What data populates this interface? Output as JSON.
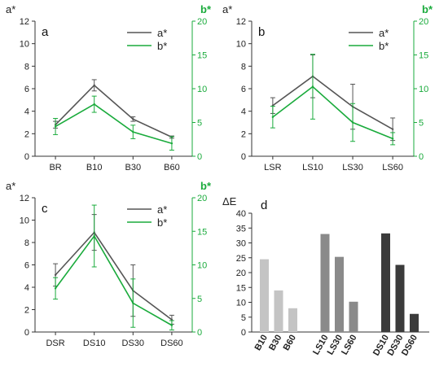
{
  "colors": {
    "a_series": "#555555",
    "b_series": "#1aab3c",
    "right_axis": "#1aab3c",
    "bars": [
      "#c4c4c4",
      "#c4c4c4",
      "#c4c4c4",
      "#8a8a8a",
      "#8a8a8a",
      "#8a8a8a",
      "#3b3b3b",
      "#3b3b3b",
      "#3b3b3b"
    ]
  },
  "chart_data": [
    {
      "panel": "a",
      "type": "line",
      "left_axis_label": "a*",
      "right_axis_label": "b*",
      "ylim_left": [
        0,
        12
      ],
      "yticks_left": [
        0,
        2,
        4,
        6,
        8,
        10,
        12
      ],
      "ylim_right": [
        0,
        20
      ],
      "yticks_right": [
        0,
        5,
        10,
        15,
        20
      ],
      "categories": [
        "BR",
        "B10",
        "B30",
        "B60"
      ],
      "series": [
        {
          "name": "a*",
          "axis": "left",
          "values": [
            2.8,
            6.3,
            3.3,
            1.7
          ],
          "errors": [
            0.3,
            0.5,
            0.2,
            0.1
          ]
        },
        {
          "name": "b*",
          "axis": "right",
          "values": [
            4.4,
            7.7,
            3.6,
            1.9
          ],
          "errors": [
            1.2,
            1.2,
            1.0,
            1.0
          ]
        }
      ],
      "legend_position": "top-right",
      "grid": false
    },
    {
      "panel": "b",
      "type": "line",
      "left_axis_label": "a*",
      "right_axis_label": "b*",
      "ylim_left": [
        0,
        12
      ],
      "yticks_left": [
        0,
        2,
        4,
        6,
        8,
        10,
        12
      ],
      "ylim_right": [
        0,
        20
      ],
      "yticks_right": [
        0,
        5,
        10,
        15,
        20
      ],
      "categories": [
        "LSR",
        "LS10",
        "LS30",
        "LS60"
      ],
      "series": [
        {
          "name": "a*",
          "axis": "left",
          "values": [
            4.5,
            7.1,
            4.4,
            2.4
          ],
          "errors": [
            0.7,
            1.9,
            2.0,
            1.0
          ]
        },
        {
          "name": "b*",
          "axis": "right",
          "values": [
            5.8,
            10.3,
            5.0,
            2.6
          ],
          "errors": [
            1.6,
            4.8,
            2.8,
            0.9
          ]
        }
      ],
      "legend_position": "top-right",
      "grid": false
    },
    {
      "panel": "c",
      "type": "line",
      "left_axis_label": "a*",
      "right_axis_label": "b*",
      "ylim_left": [
        0,
        12
      ],
      "yticks_left": [
        0,
        2,
        4,
        6,
        8,
        10,
        12
      ],
      "ylim_right": [
        0,
        20
      ],
      "yticks_right": [
        0,
        5,
        10,
        15,
        20
      ],
      "categories": [
        "DSR",
        "DS10",
        "DS30",
        "DS60"
      ],
      "series": [
        {
          "name": "a*",
          "axis": "left",
          "values": [
            5.1,
            8.9,
            3.7,
            1.1
          ],
          "errors": [
            1.0,
            1.6,
            2.3,
            0.4
          ]
        },
        {
          "name": "b*",
          "axis": "right",
          "values": [
            6.5,
            14.3,
            4.3,
            1.0
          ],
          "errors": [
            1.6,
            4.6,
            3.6,
            0.7
          ]
        }
      ],
      "legend_position": "top-right",
      "grid": false
    },
    {
      "panel": "d",
      "type": "bar",
      "ylabel": "ΔE",
      "ylim": [
        0,
        40
      ],
      "yticks": [
        0,
        5,
        10,
        15,
        20,
        25,
        30,
        35,
        40
      ],
      "categories": [
        "B10",
        "B30",
        "B60",
        "LS10",
        "LS30",
        "LS60",
        "DS10",
        "DS30",
        "DS60"
      ],
      "values": [
        24.5,
        14,
        8,
        33,
        25.3,
        10.2,
        33.2,
        22.6,
        6.1
      ],
      "grid": false
    }
  ]
}
